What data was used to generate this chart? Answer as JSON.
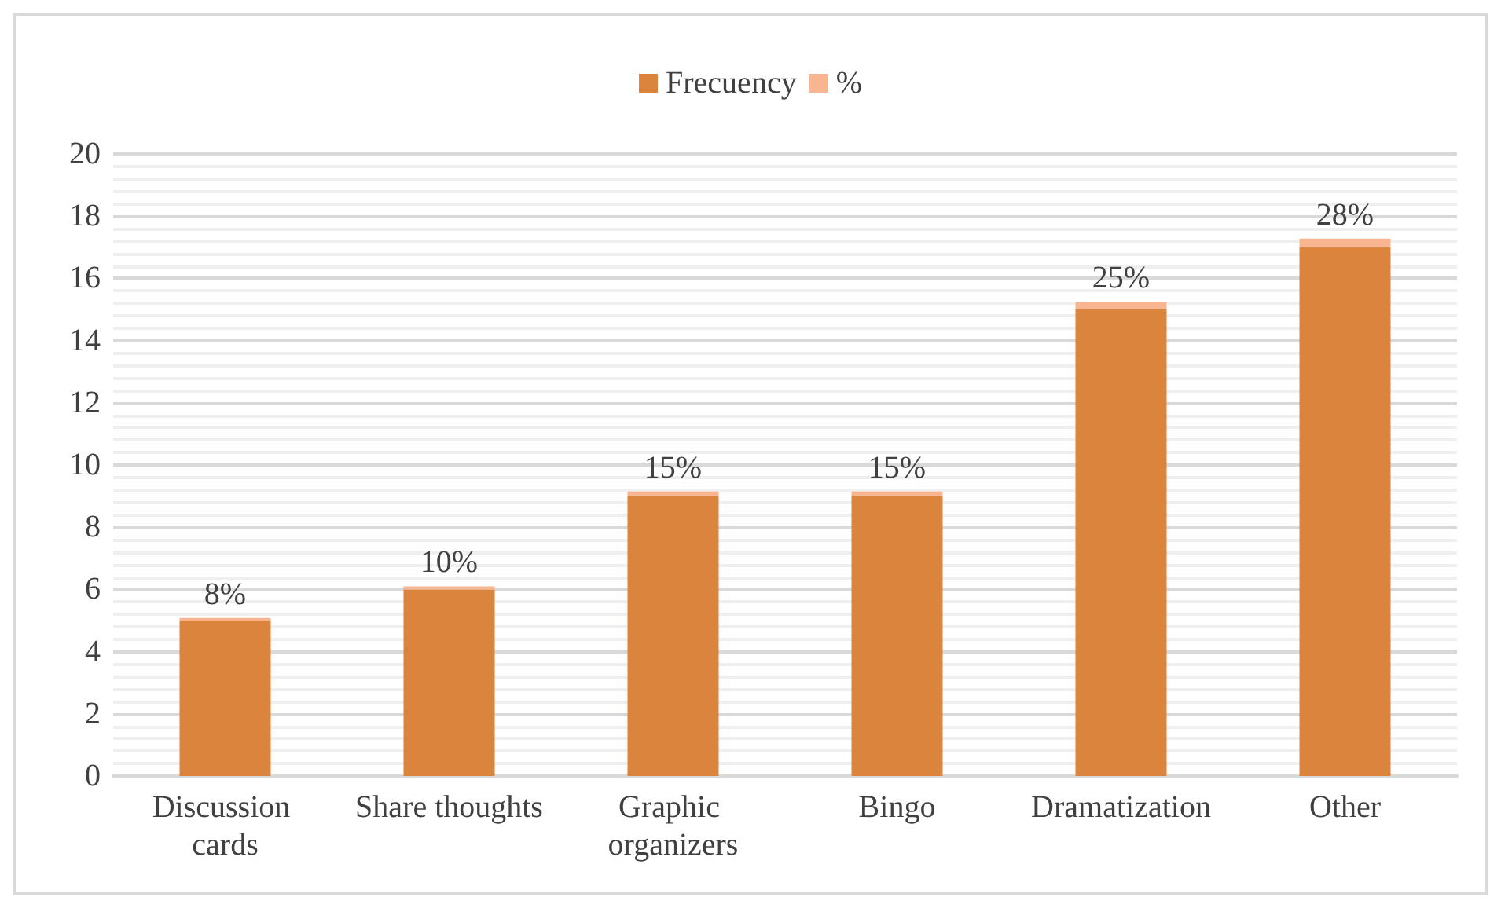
{
  "chart_data": {
    "type": "bar",
    "stacked": true,
    "categories": [
      "Discussion cards",
      "Share thoughts",
      "Graphic organizers",
      "Bingo",
      "Dramatization",
      "Other"
    ],
    "series": [
      {
        "name": "Frecuency",
        "color": "#db843d",
        "values": [
          5,
          6,
          9,
          9,
          15,
          17
        ]
      },
      {
        "name": "%",
        "color": "#f8b58f",
        "values": [
          0.08,
          0.1,
          0.15,
          0.15,
          0.25,
          0.28
        ],
        "value_labels": [
          "8%",
          "10%",
          "15%",
          "15%",
          "25%",
          "28%"
        ]
      }
    ],
    "ylim": [
      0,
      20
    ],
    "yticks": [
      0,
      2,
      4,
      6,
      8,
      10,
      12,
      14,
      16,
      18,
      20
    ],
    "grid": "y",
    "legend": "top"
  }
}
